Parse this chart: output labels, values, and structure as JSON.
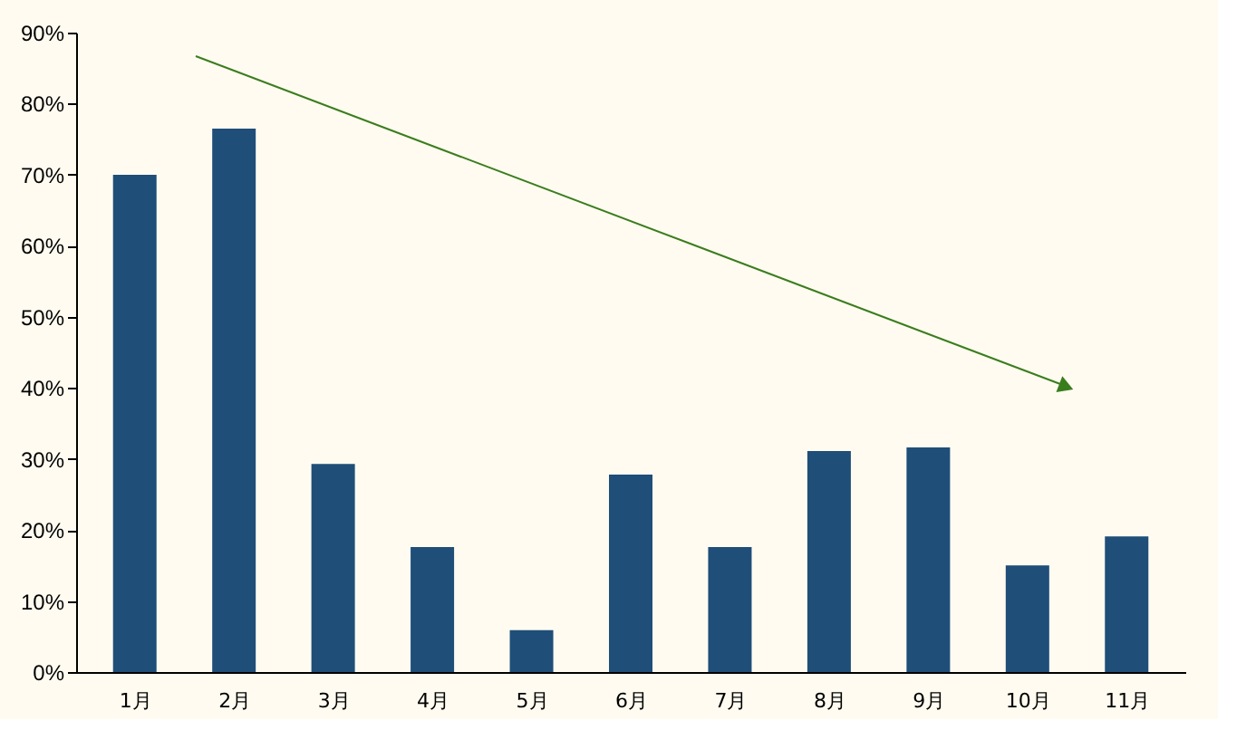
{
  "chart_data": {
    "type": "bar",
    "categories": [
      "1月",
      "2月",
      "3月",
      "4月",
      "5月",
      "6月",
      "7月",
      "8月",
      "9月",
      "10月",
      "11月"
    ],
    "values": [
      70,
      76.5,
      29.3,
      17.6,
      5.9,
      27.8,
      17.6,
      31.1,
      31.6,
      15.0,
      19.1
    ],
    "color": "#1f4e79",
    "ylim": [
      0,
      90
    ],
    "yticks": [
      {
        "value": 0,
        "label": "0%"
      },
      {
        "value": 10,
        "label": "10%"
      },
      {
        "value": 20,
        "label": "20%"
      },
      {
        "value": 30,
        "label": "30%"
      },
      {
        "value": 40,
        "label": "40%"
      },
      {
        "value": 50,
        "label": "50%"
      },
      {
        "value": 60,
        "label": "60%"
      },
      {
        "value": 70,
        "label": "70%"
      },
      {
        "value": 80,
        "label": "80%"
      },
      {
        "value": 90,
        "label": "90%"
      }
    ],
    "grid": false
  }
}
